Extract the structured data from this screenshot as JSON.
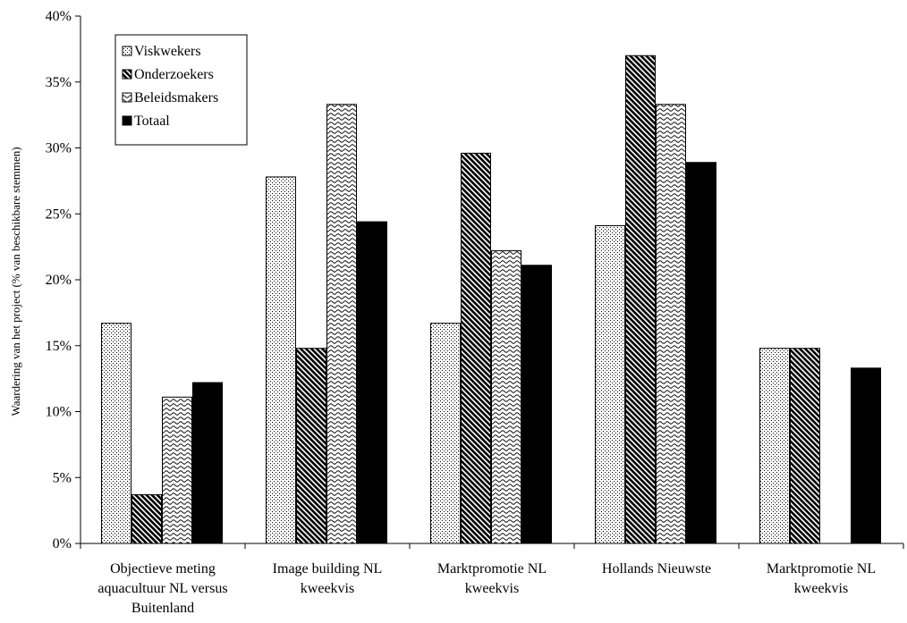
{
  "chart_data": {
    "type": "bar",
    "ylabel": "Waardering van het project (% van beschikbare stemmen)",
    "ylim": [
      0,
      40
    ],
    "yticks": [
      "0%",
      "5%",
      "10%",
      "15%",
      "20%",
      "25%",
      "30%",
      "35%",
      "40%"
    ],
    "categories": [
      [
        "Objectieve meting",
        "aquacultuur NL versus",
        "Buitenland"
      ],
      [
        "Image building NL",
        "kweekvis"
      ],
      [
        "Marktpromotie NL",
        "kweekvis"
      ],
      [
        "Hollands Nieuwste"
      ],
      [
        "Marktpromotie NL",
        "kweekvis"
      ]
    ],
    "series": [
      {
        "name": "Viskwekers",
        "pattern": "dots",
        "values": [
          16.7,
          27.8,
          16.7,
          24.1,
          14.8
        ]
      },
      {
        "name": "Onderzoekers",
        "pattern": "diagonal",
        "values": [
          3.7,
          14.8,
          29.6,
          37.0,
          14.8
        ]
      },
      {
        "name": "Beleidsmakers",
        "pattern": "wave",
        "values": [
          11.1,
          33.3,
          22.2,
          33.3,
          0
        ]
      },
      {
        "name": "Totaal",
        "pattern": "solid",
        "values": [
          12.2,
          24.4,
          21.1,
          28.9,
          13.3
        ]
      }
    ],
    "legend_position": "top-left",
    "grid": false
  }
}
